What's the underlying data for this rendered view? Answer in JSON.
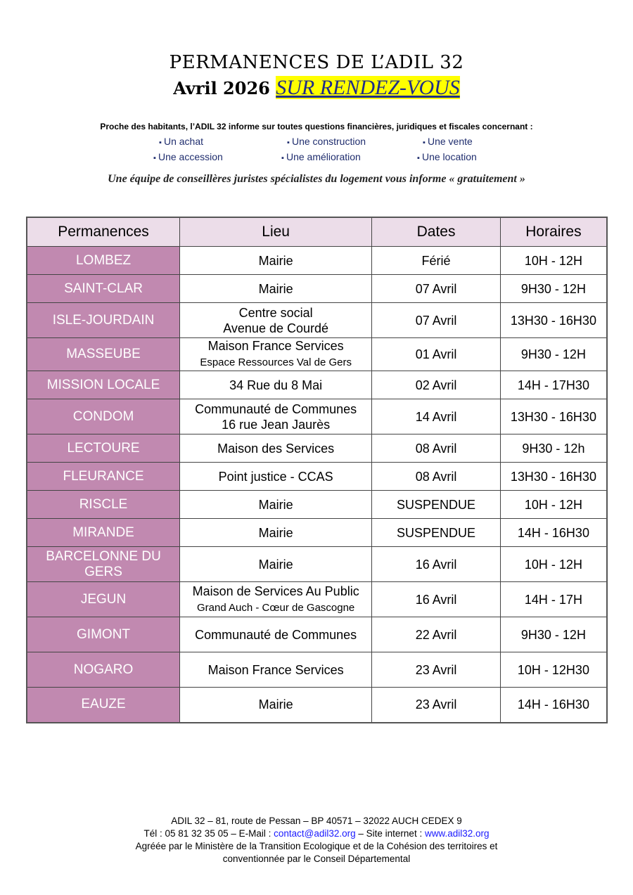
{
  "title": "PERMANENCES DE L’ADIL 32",
  "subtitle_month": "Avril 2026",
  "subtitle_rdv": "SUR RENDEZ-VOUS",
  "intro": "Proche des habitants, l’ADIL 32 informe sur toutes questions financières, juridiques et fiscales concernant :",
  "topics": [
    "Un achat",
    "Une construction",
    "Une vente",
    "Une accession",
    "Une amélioration",
    "Une location"
  ],
  "team": "Une équipe de conseillères juristes spécialistes du logement vous informe « gratuitement »",
  "table": {
    "headers": [
      "Permanences",
      "Lieu",
      "Dates",
      "Horaires"
    ],
    "rows": [
      {
        "place": "LOMBEZ",
        "lieu": "Mairie",
        "lieu2": "",
        "date": "Férié",
        "hours": "10H - 12H"
      },
      {
        "place": "SAINT-CLAR",
        "lieu": "Mairie",
        "lieu2": "",
        "date": "07 Avril",
        "hours": "9H30 - 12H"
      },
      {
        "place": "ISLE-JOURDAIN",
        "lieu": "Centre social",
        "lieu2": "Avenue de Courdé",
        "date": "07 Avril",
        "hours": "13H30 - 16H30"
      },
      {
        "place": "MASSEUBE",
        "lieu": "Maison France Services",
        "lieu2": "Espace Ressources Val de Gers",
        "date": "01 Avril",
        "hours": "9H30 - 12H"
      },
      {
        "place": "MISSION LOCALE",
        "lieu": "34 Rue du 8 Mai",
        "lieu2": "",
        "date": "02 Avril",
        "hours": "14H - 17H30"
      },
      {
        "place": "CONDOM",
        "lieu": "Communauté de Communes",
        "lieu2": "16 rue Jean Jaurès",
        "date": "14 Avril",
        "hours": "13H30 - 16H30"
      },
      {
        "place": "LECTOURE",
        "lieu": "Maison des Services",
        "lieu2": "",
        "date": "08 Avril",
        "hours": "9H30 - 12h"
      },
      {
        "place": "FLEURANCE",
        "lieu": "Point justice - CCAS",
        "lieu2": "",
        "date": "08 Avril",
        "hours": "13H30 - 16H30"
      },
      {
        "place": "RISCLE",
        "lieu": "Mairie",
        "lieu2": "",
        "date": "SUSPENDUE",
        "hours": "10H - 12H"
      },
      {
        "place": "MIRANDE",
        "lieu": "Mairie",
        "lieu2": "",
        "date": "SUSPENDUE",
        "hours": "14H - 16H30"
      },
      {
        "place": "BARCELONNE DU GERS",
        "lieu": "Mairie",
        "lieu2": "",
        "date": "16 Avril",
        "hours": "10H - 12H"
      },
      {
        "place": "JEGUN",
        "lieu": "Maison de Services Au Public",
        "lieu2": "Grand Auch - Cœur de Gascogne",
        "date": "16 Avril",
        "hours": "14H - 17H"
      },
      {
        "place": "GIMONT",
        "lieu": "Communauté de Communes",
        "lieu2": "",
        "date": "22 Avril",
        "hours": "9H30 - 12H"
      },
      {
        "place": "NOGARO",
        "lieu": "Maison France Services",
        "lieu2": "",
        "date": "23 Avril",
        "hours": "10H - 12H30"
      },
      {
        "place": "EAUZE",
        "lieu": "Mairie",
        "lieu2": "",
        "date": "23 Avril",
        "hours": "14H - 16H30"
      }
    ]
  },
  "footer": {
    "line1": "ADIL 32 – 81, route de Pessan – BP 40571 – 32022 AUCH CEDEX 9",
    "tel": "Tél : 05 81 32 35 05 – E-Mail : ",
    "email": "contact@adil32.org",
    "site_label": " – Site internet : ",
    "site": "www.adil32.org",
    "line3": "Agréée par le Ministère de la Transition Ecologique et de la Cohésion des territoires et",
    "line4": "conventionnée par le Conseil Départemental"
  }
}
